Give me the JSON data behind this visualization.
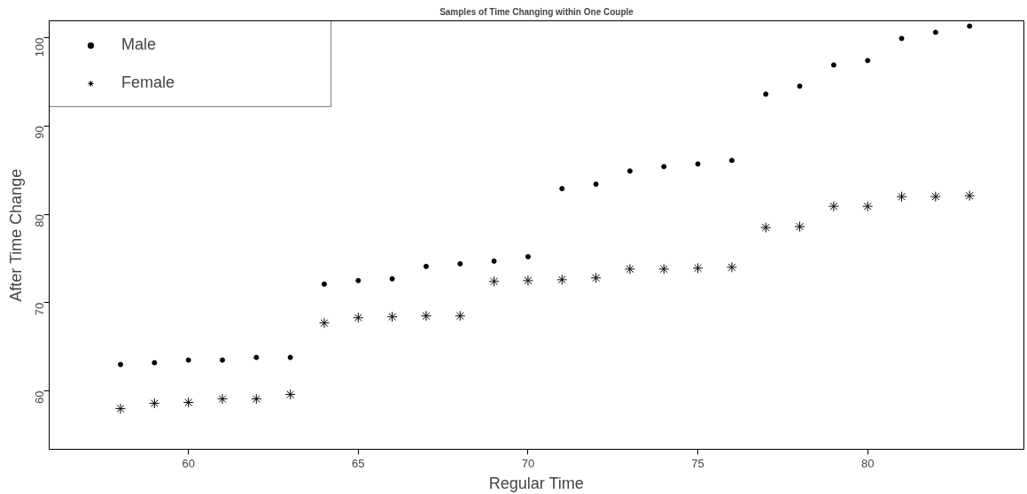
{
  "chart_data": {
    "type": "scatter",
    "title": "Samples of Time Changing within One Couple",
    "xlabel": "Regular Time",
    "ylabel": "After Time Change",
    "x": [
      58,
      59,
      60,
      61,
      62,
      63,
      64,
      65,
      66,
      67,
      68,
      69,
      70,
      71,
      72,
      73,
      74,
      75,
      76,
      77,
      78,
      79,
      80,
      81,
      82,
      83
    ],
    "series": [
      {
        "name": "Male",
        "color": "#000000",
        "marker": "circle",
        "values": [
          63.0,
          63.2,
          63.5,
          63.5,
          63.8,
          63.8,
          72.1,
          72.5,
          72.7,
          74.1,
          74.4,
          74.7,
          75.2,
          82.9,
          83.4,
          84.9,
          85.4,
          85.7,
          86.1,
          93.6,
          94.5,
          96.9,
          97.4,
          99.9,
          100.6,
          101.3
        ]
      },
      {
        "name": "Female",
        "color": "#000000",
        "marker": "cross",
        "values": [
          58.0,
          58.6,
          58.7,
          59.1,
          59.1,
          59.6,
          67.7,
          68.3,
          68.4,
          68.5,
          68.5,
          72.4,
          72.5,
          72.6,
          72.8,
          73.8,
          73.8,
          73.9,
          74.0,
          78.5,
          78.6,
          80.9,
          80.9,
          82.0,
          82.0,
          82.1
        ]
      }
    ],
    "xlim": [
      55.9,
      84.6
    ],
    "ylim": [
      53.4,
      101.9
    ],
    "xticks": [
      60,
      65,
      70,
      75,
      80
    ],
    "yticks": [
      60,
      70,
      80,
      90,
      100
    ],
    "grid": false,
    "legend": "top left"
  }
}
